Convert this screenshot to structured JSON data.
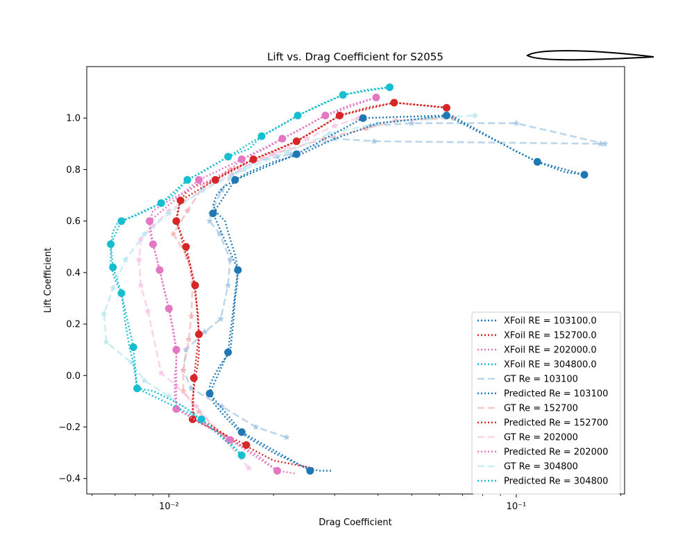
{
  "chart_data": {
    "type": "scatter",
    "title": "Lift vs. Drag Coefficient for S2055",
    "xlabel": "Drag Coefficient",
    "ylabel": "Lift Coefficient",
    "x_scale": "log",
    "xlim": [
      0.0058,
      0.205
    ],
    "ylim": [
      -0.46,
      1.2
    ],
    "x_ticks": [
      0.01,
      0.1
    ],
    "x_tick_labels": [
      "10⁻²",
      "10⁻¹"
    ],
    "y_ticks": [
      -0.4,
      -0.2,
      0.0,
      0.2,
      0.4,
      0.6,
      0.8,
      1.0
    ],
    "y_tick_labels": [
      "−0.4",
      "−0.2",
      "0.0",
      "0.2",
      "0.4",
      "0.6",
      "0.8",
      "1.0"
    ],
    "grid": false,
    "legend_position": "lower right",
    "inset": "airfoil outline",
    "series": [
      {
        "name": "XFoil RE = 103100.0",
        "kind": "xfoil",
        "color": "#1f77b4",
        "x": [
          0.0293,
          0.027,
          0.0255,
          0.024,
          0.02,
          0.0173,
          0.016,
          0.0145,
          0.0135,
          0.0132,
          0.0131,
          0.0135,
          0.0142,
          0.015,
          0.0153,
          0.0155,
          0.0157,
          0.0158,
          0.0155,
          0.015,
          0.0145,
          0.0138,
          0.0134,
          0.0137,
          0.0143,
          0.0155,
          0.017,
          0.02,
          0.024,
          0.03,
          0.04,
          0.055,
          0.065,
          0.1,
          0.115,
          0.138,
          0.157
        ],
        "y": [
          -0.37,
          -0.37,
          -0.36,
          -0.35,
          -0.3,
          -0.25,
          -0.22,
          -0.16,
          -0.11,
          -0.07,
          -0.04,
          0.0,
          0.05,
          0.09,
          0.2,
          0.3,
          0.35,
          0.41,
          0.47,
          0.53,
          0.6,
          0.63,
          0.66,
          0.7,
          0.73,
          0.76,
          0.79,
          0.83,
          0.86,
          0.92,
          0.98,
          1.0,
          1.01,
          0.87,
          0.83,
          0.79,
          0.78
        ]
      },
      {
        "name": "XFoil RE = 152700.0",
        "kind": "xfoil",
        "color": "#d62728",
        "x": [
          0.026,
          0.02,
          0.017,
          0.016,
          0.0145,
          0.0131,
          0.0119,
          0.0117,
          0.0117,
          0.0118,
          0.0119,
          0.0121,
          0.0122,
          0.0122,
          0.0121,
          0.0118,
          0.0115,
          0.011,
          0.0108,
          0.0105,
          0.0106,
          0.0108,
          0.0112,
          0.012,
          0.013,
          0.0136,
          0.0148,
          0.0163,
          0.0175,
          0.02,
          0.0233,
          0.027,
          0.031,
          0.037,
          0.0445,
          0.054,
          0.064
        ],
        "y": [
          -0.36,
          -0.33,
          -0.28,
          -0.27,
          -0.23,
          -0.19,
          -0.17,
          -0.13,
          -0.09,
          -0.05,
          -0.01,
          0.04,
          0.09,
          0.16,
          0.25,
          0.35,
          0.43,
          0.5,
          0.55,
          0.6,
          0.64,
          0.68,
          0.71,
          0.74,
          0.75,
          0.76,
          0.79,
          0.82,
          0.84,
          0.87,
          0.91,
          0.96,
          1.01,
          1.04,
          1.06,
          1.05,
          1.04
        ]
      },
      {
        "name": "XFoil RE = 202000.0",
        "kind": "xfoil",
        "color": "#e377c2",
        "x": [
          0.023,
          0.0205,
          0.018,
          0.015,
          0.012,
          0.0105,
          0.0104,
          0.0104,
          0.0105,
          0.0105,
          0.0103,
          0.01,
          0.0097,
          0.0094,
          0.0092,
          0.009,
          0.0088,
          0.0088,
          0.009,
          0.0095,
          0.01,
          0.011,
          0.0122,
          0.0132,
          0.015,
          0.0162,
          0.0175,
          0.0195,
          0.0212,
          0.0235,
          0.0282,
          0.033,
          0.0395
        ],
        "y": [
          -0.38,
          -0.37,
          -0.31,
          -0.25,
          -0.17,
          -0.13,
          -0.08,
          0.0,
          0.05,
          0.1,
          0.18,
          0.26,
          0.33,
          0.41,
          0.46,
          0.51,
          0.56,
          0.6,
          0.64,
          0.66,
          0.68,
          0.71,
          0.74,
          0.76,
          0.8,
          0.84,
          0.86,
          0.89,
          0.92,
          0.95,
          1.01,
          1.05,
          1.08
        ]
      },
      {
        "name": "XFoil RE = 304800.0",
        "kind": "xfoil",
        "color": "#17becf",
        "x": [
          0.0162,
          0.015,
          0.0135,
          0.0124,
          0.011,
          0.01,
          0.009,
          0.0081,
          0.008,
          0.0079,
          0.0077,
          0.0075,
          0.0073,
          0.007,
          0.0068,
          0.0068,
          0.0069,
          0.0071,
          0.0073,
          0.008,
          0.0086,
          0.0095,
          0.0103,
          0.0113,
          0.0125,
          0.0148,
          0.017,
          0.0185,
          0.021,
          0.0235,
          0.028,
          0.0317,
          0.037,
          0.0432
        ],
        "y": [
          -0.31,
          -0.26,
          -0.21,
          -0.17,
          -0.12,
          -0.09,
          -0.06,
          -0.05,
          0.0,
          0.05,
          0.11,
          0.2,
          0.32,
          0.37,
          0.43,
          0.51,
          0.56,
          0.59,
          0.6,
          0.62,
          0.64,
          0.67,
          0.7,
          0.76,
          0.79,
          0.85,
          0.88,
          0.93,
          0.97,
          1.01,
          1.06,
          1.09,
          1.11,
          1.12
        ]
      },
      {
        "name": "GT Re = 103100",
        "kind": "gt",
        "color": "#a6c8e4",
        "x": [
          0.0218,
          0.0178,
          0.0142,
          0.0116,
          0.011,
          0.0112,
          0.0127,
          0.0141,
          0.0148,
          0.015,
          0.014,
          0.0131,
          0.0132,
          0.0142,
          0.0152,
          0.0175,
          0.0205,
          0.0225,
          0.03,
          0.039,
          0.175,
          0.18,
          0.1,
          0.05,
          0.038
        ],
        "y": [
          -0.24,
          -0.2,
          -0.12,
          -0.05,
          0.02,
          0.1,
          0.17,
          0.22,
          0.35,
          0.45,
          0.55,
          0.6,
          0.63,
          0.72,
          0.78,
          0.83,
          0.85,
          0.86,
          0.92,
          0.91,
          0.9,
          0.9,
          0.98,
          0.98,
          0.97
        ]
      },
      {
        "name": "Predicted Re = 103100",
        "kind": "pred",
        "color": "#1f77b4",
        "x": [
          0.0255,
          0.0162,
          0.0131,
          0.0148,
          0.0158,
          0.0134,
          0.0155,
          0.0233,
          0.0362,
          0.063,
          0.115,
          0.157
        ],
        "y": [
          -0.37,
          -0.22,
          -0.07,
          0.09,
          0.41,
          0.63,
          0.76,
          0.86,
          1.0,
          1.01,
          0.83,
          0.78
        ]
      },
      {
        "name": "GT Re = 152700",
        "kind": "gt",
        "color": "#f4b6b7",
        "x": [
          0.0145,
          0.0122,
          0.011,
          0.011,
          0.0114,
          0.0116,
          0.0117,
          0.0113,
          0.0103,
          0.0113,
          0.0125,
          0.015,
          0.02,
          0.028,
          0.037,
          0.045,
          0.066
        ],
        "y": [
          -0.24,
          -0.14,
          -0.06,
          0.02,
          0.14,
          0.23,
          0.36,
          0.46,
          0.55,
          0.64,
          0.73,
          0.8,
          0.86,
          0.92,
          0.96,
          0.99,
          1.0
        ]
      },
      {
        "name": "Predicted Re = 152700",
        "kind": "pred",
        "color": "#d62728",
        "x": [
          0.0167,
          0.0117,
          0.0118,
          0.0122,
          0.0119,
          0.0112,
          0.0105,
          0.0108,
          0.0136,
          0.0175,
          0.0233,
          0.031,
          0.0445,
          0.063
        ],
        "y": [
          -0.27,
          -0.17,
          -0.01,
          0.16,
          0.35,
          0.5,
          0.6,
          0.68,
          0.76,
          0.84,
          0.91,
          1.01,
          1.06,
          1.04
        ]
      },
      {
        "name": "GT Re = 202000",
        "kind": "gt",
        "color": "#f7c6e7",
        "x": [
          0.017,
          0.012,
          0.0105,
          0.0095,
          0.0087,
          0.0083,
          0.0082,
          0.0083,
          0.009,
          0.01,
          0.0125,
          0.016,
          0.02,
          0.025,
          0.03,
          0.035
        ],
        "y": [
          -0.36,
          -0.12,
          -0.04,
          0.01,
          0.25,
          0.35,
          0.45,
          0.53,
          0.58,
          0.64,
          0.72,
          0.8,
          0.86,
          0.92,
          0.97,
          1.0
        ]
      },
      {
        "name": "Predicted Re = 202000",
        "kind": "pred",
        "color": "#e377c2",
        "x": [
          0.0205,
          0.015,
          0.0105,
          0.0105,
          0.01,
          0.0094,
          0.009,
          0.0088,
          0.0122,
          0.0162,
          0.0212,
          0.0282,
          0.0395
        ],
        "y": [
          -0.37,
          -0.25,
          -0.13,
          0.1,
          0.26,
          0.41,
          0.51,
          0.6,
          0.76,
          0.84,
          0.92,
          1.01,
          1.08
        ]
      },
      {
        "name": "GT Re = 304800",
        "kind": "gt",
        "color": "#b9e8f0",
        "x": [
          0.0118,
          0.01,
          0.0085,
          0.0078,
          0.0066,
          0.0065,
          0.0069,
          0.0075,
          0.0085,
          0.01,
          0.0125,
          0.0165,
          0.022,
          0.029,
          0.04,
          0.056,
          0.076
        ],
        "y": [
          -0.15,
          -0.08,
          -0.02,
          0.05,
          0.13,
          0.24,
          0.34,
          0.45,
          0.55,
          0.63,
          0.72,
          0.8,
          0.87,
          0.94,
          0.98,
          1.0,
          1.01
        ]
      },
      {
        "name": "Predicted Re = 304800",
        "kind": "pred",
        "color": "#17becf",
        "x": [
          0.0162,
          0.0124,
          0.0081,
          0.0079,
          0.0073,
          0.0069,
          0.0068,
          0.0073,
          0.0095,
          0.0113,
          0.0148,
          0.0185,
          0.0235,
          0.0317,
          0.0432
        ],
        "y": [
          -0.31,
          -0.17,
          -0.05,
          0.11,
          0.32,
          0.42,
          0.51,
          0.6,
          0.67,
          0.76,
          0.85,
          0.93,
          1.01,
          1.09,
          1.12
        ]
      }
    ]
  }
}
